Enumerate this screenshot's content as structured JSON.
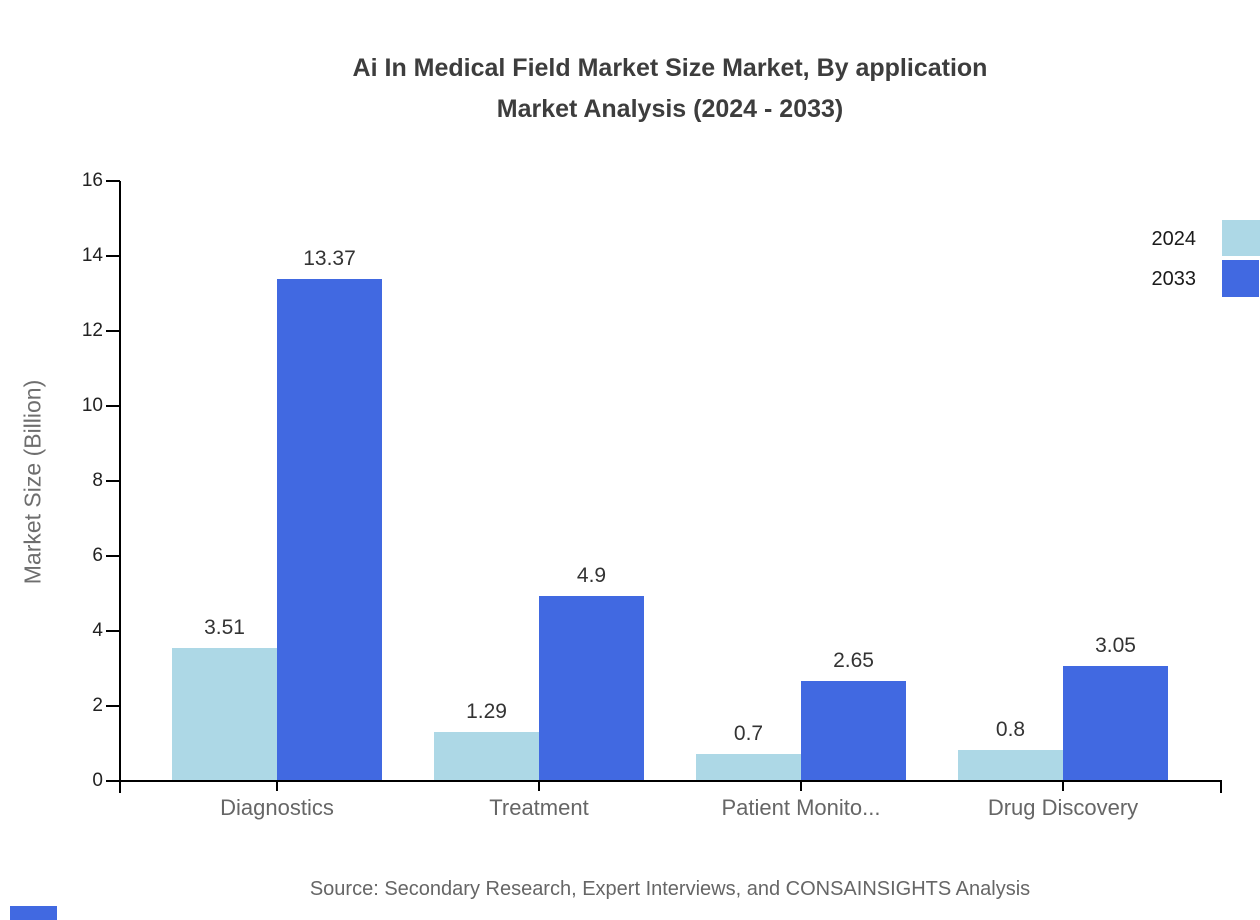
{
  "title": {
    "line1": "Ai In Medical Field Market Size Market, By application",
    "line2": "Market Analysis (2024 - 2033)"
  },
  "source": "Source: Secondary Research, Expert Interviews, and CONSAINSIGHTS Analysis",
  "legend": [
    {
      "label": "2024",
      "color": "#add8e6"
    },
    {
      "label": "2033",
      "color": "#4169e1"
    }
  ],
  "colors": {
    "series_2024": "#add8e6",
    "series_2033": "#4169e1",
    "axis": "#000000",
    "title_text": "#3d3d3d",
    "tick_text": "#222222",
    "muted_text": "#666666"
  },
  "chart_data": {
    "type": "bar",
    "categories": [
      "Diagnostics",
      "Treatment",
      "Patient Monito...",
      "Drug Discovery"
    ],
    "series": [
      {
        "name": "2024",
        "color": "#add8e6",
        "values": [
          3.51,
          1.29,
          0.7,
          0.8
        ]
      },
      {
        "name": "2033",
        "color": "#4169e1",
        "values": [
          13.37,
          4.9,
          2.65,
          3.05
        ]
      }
    ],
    "title": "Ai In Medical Field Market Size Market, By application Market Analysis (2024 - 2033)",
    "xlabel": "",
    "ylabel": "Market Size (Billion)",
    "ylim": [
      0,
      16
    ],
    "yticks": [
      0,
      2,
      4,
      6,
      8,
      10,
      12,
      14,
      16
    ],
    "grid": false,
    "legend_position": "top-right",
    "value_labels_shown": true
  }
}
